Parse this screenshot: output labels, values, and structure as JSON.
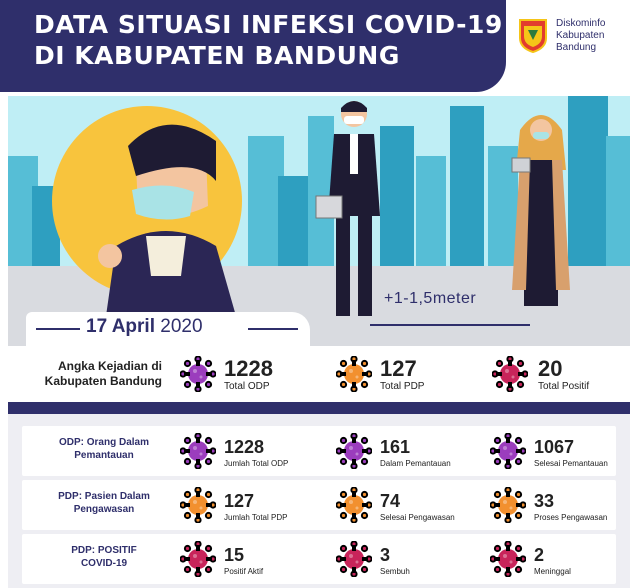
{
  "header": {
    "title_line1": "DATA SITUASI INFEKSI COVID-19",
    "title_line2": "DI KABUPATEN BANDUNG",
    "org_line1": "Diskominfo",
    "org_line2": "Kabupaten",
    "org_line3": "Bandung"
  },
  "scene": {
    "date_day": "17 April",
    "date_year": "2020",
    "distance_label": "+1-1,5meter"
  },
  "summary": {
    "label_line1": "Angka Kejadian di",
    "label_line2": "Kabupaten Bandung",
    "stats": [
      {
        "value": "1228",
        "label": "Total ODP",
        "color": "purple"
      },
      {
        "value": "127",
        "label": "Total PDP",
        "color": "orange"
      },
      {
        "value": "20",
        "label": "Total Positif",
        "color": "red"
      }
    ]
  },
  "colors": {
    "navy": "#2f2f6b",
    "purple": "#9b3dbd",
    "orange": "#f2902f",
    "red": "#c8245a",
    "sky": "#bfeef5"
  },
  "rows": [
    {
      "label_line1": "ODP: Orang Dalam",
      "label_line2": "Pemantauan",
      "color": "purple",
      "cells": [
        {
          "value": "1228",
          "label": "Jumlah Total ODP"
        },
        {
          "value": "161",
          "label": "Dalam Pemantauan"
        },
        {
          "value": "1067",
          "label": "Selesai Pemantauan"
        }
      ]
    },
    {
      "label_line1": "PDP: Pasien Dalam",
      "label_line2": "Pengawasan",
      "color": "orange",
      "cells": [
        {
          "value": "127",
          "label": "Jumlah Total PDP"
        },
        {
          "value": "74",
          "label": "Selesai Pengawasan"
        },
        {
          "value": "33",
          "label": "Proses Pengawasan"
        }
      ]
    },
    {
      "label_line1": "PDP: POSITIF",
      "label_line2": "COVID-19",
      "color": "red",
      "cells": [
        {
          "value": "15",
          "label": "Positif Aktif"
        },
        {
          "value": "3",
          "label": "Sembuh"
        },
        {
          "value": "2",
          "label": "Meninggal"
        }
      ]
    }
  ]
}
